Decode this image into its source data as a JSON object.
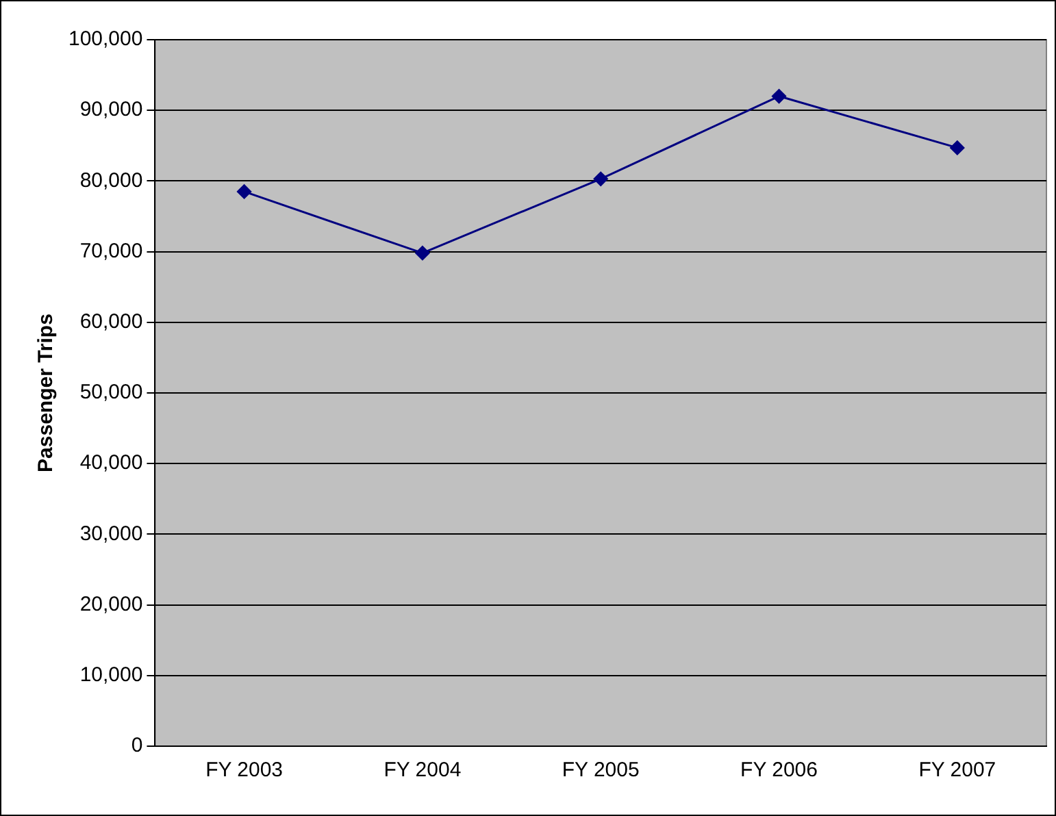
{
  "chart_data": {
    "type": "line",
    "ylabel": "Passenger Trips",
    "categories": [
      "FY 2003",
      "FY 2004",
      "FY 2005",
      "FY 2006",
      "FY 2007"
    ],
    "series": [
      {
        "color": "#000080",
        "values": [
          78500,
          69800,
          80300,
          92000,
          84700
        ]
      }
    ],
    "ylim": [
      0,
      100000
    ],
    "yticks": [
      0,
      {
        "value": 10000,
        "label": "10,000"
      },
      {
        "value": 20000,
        "label": "20,000"
      },
      {
        "value": 30000,
        "label": "30,000"
      },
      {
        "value": 40000,
        "label": "40,000"
      },
      {
        "value": 50000,
        "label": "50,000"
      },
      {
        "value": 60000,
        "label": "60,000"
      },
      {
        "value": 70000,
        "label": "70,000"
      },
      {
        "value": 80000,
        "label": "80,000"
      },
      {
        "value": 90000,
        "label": "90,000"
      },
      {
        "value": 100000,
        "label": "100,000"
      }
    ],
    "grid": "y",
    "legend": false,
    "marker": "diamond",
    "line_style": "solid"
  }
}
